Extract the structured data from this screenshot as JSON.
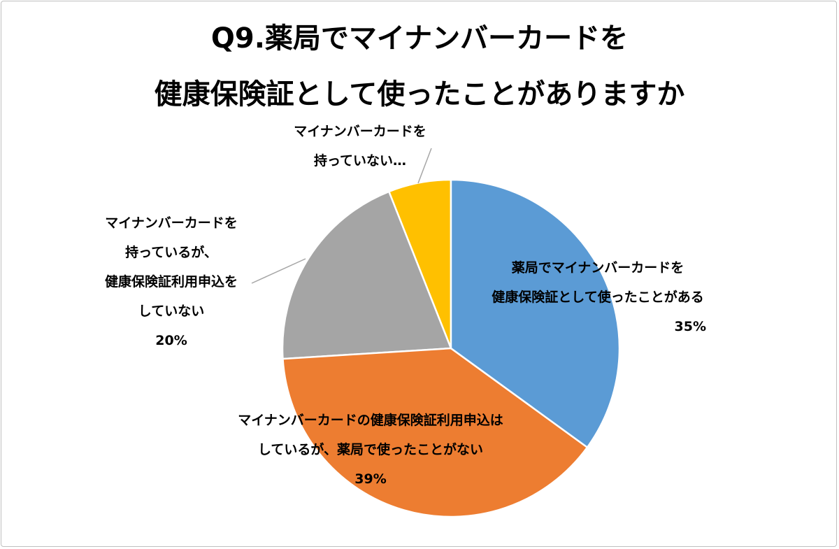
{
  "chart_data": {
    "type": "pie",
    "title_lines": [
      "Q9.薬局でマイナンバーカードを",
      "健康保険証として使ったことがありますか"
    ],
    "start_angle_deg": 0,
    "direction": "clockwise",
    "slices": [
      {
        "label_lines": [
          "薬局でマイナンバーカードを",
          "健康保険証として使ったことがある"
        ],
        "value": 35,
        "value_label": "35%",
        "color": "#5B9BD5"
      },
      {
        "label_lines": [
          "マイナンバーカードの健康保険証利用申込は",
          "しているが、薬局で使ったことがない"
        ],
        "value": 39,
        "value_label": "39%",
        "color": "#ED7D31"
      },
      {
        "label_lines": [
          "マイナンバーカードを",
          "持っているが、",
          "健康保険証利用申込を",
          "していない"
        ],
        "value": 20,
        "value_label": "20%",
        "color": "#A5A5A5"
      },
      {
        "label_lines": [
          "マイナンバーカードを",
          "持っていない…"
        ],
        "value": 6,
        "value_label": "",
        "color": "#FFC000"
      }
    ]
  }
}
